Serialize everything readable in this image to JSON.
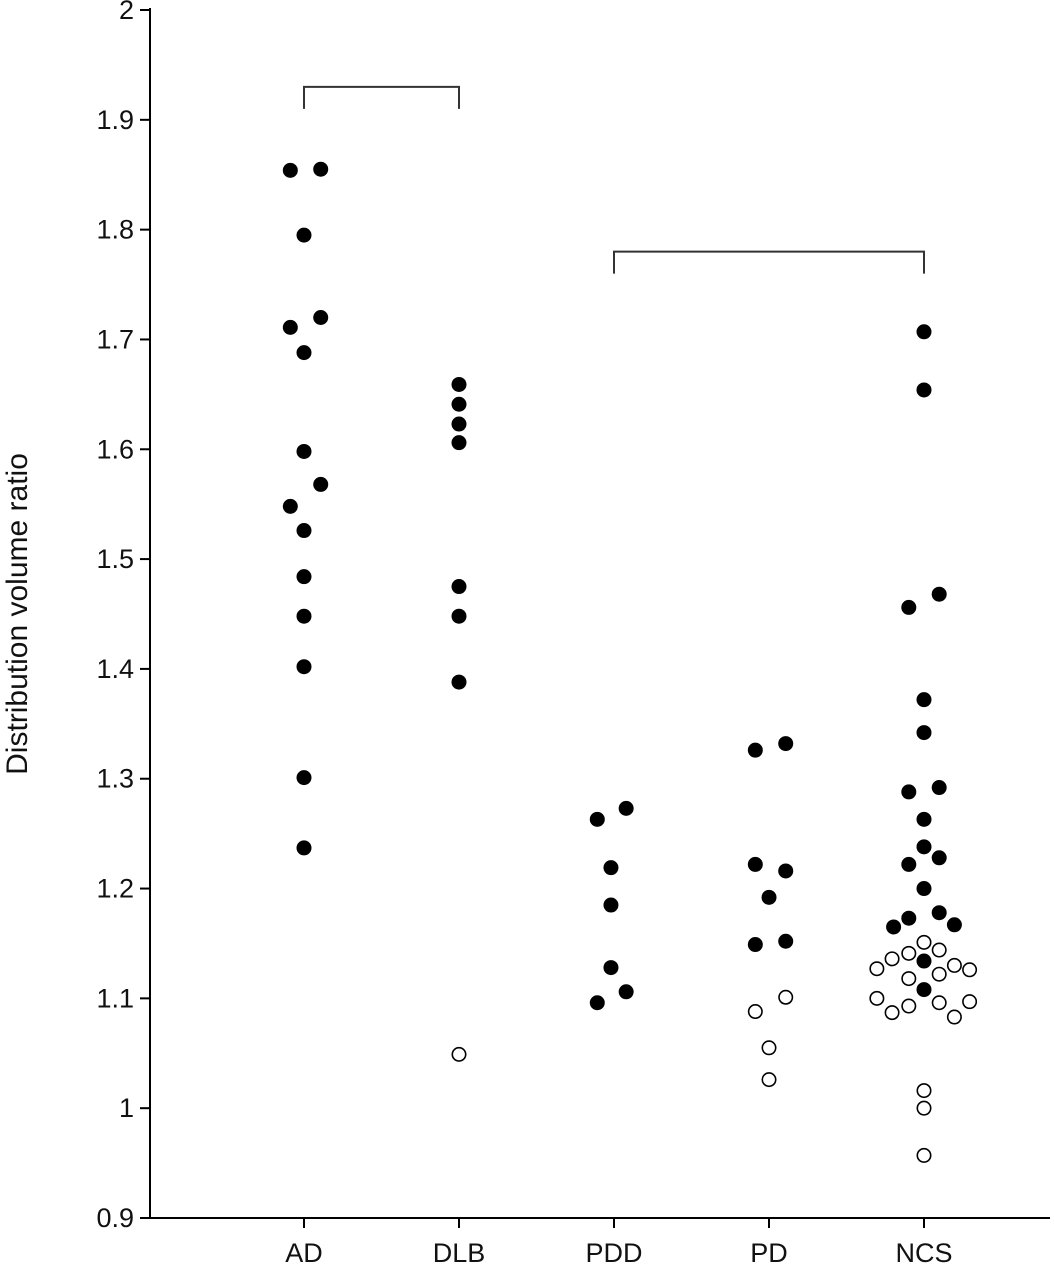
{
  "chart_data": {
    "type": "scatter",
    "title": "",
    "xlabel": "",
    "ylabel": "Distribution volume ratio",
    "ylim": [
      0.9,
      2.0
    ],
    "yticks": [
      "0.9",
      "1",
      "1.1",
      "1.2",
      "1.3",
      "1.4",
      "1.5",
      "1.6",
      "1.7",
      "1.8",
      "1.9",
      "2"
    ],
    "categories": [
      "AD",
      "DLB",
      "PDD",
      "PD",
      "NCS"
    ],
    "grid": false,
    "legend": "none",
    "colors": {
      "filled": "#000000",
      "open_fill": "#ffffff",
      "open_stroke": "#000000",
      "axis": "#000000"
    },
    "comparison_brackets": [
      {
        "from": "AD",
        "to": "DLB",
        "y": 1.93
      },
      {
        "from": "PDD",
        "to": "NCS",
        "y": 1.78
      }
    ],
    "series": [
      {
        "category": "AD",
        "filled": true,
        "points": [
          {
            "y": 1.854,
            "offset": -0.09
          },
          {
            "y": 1.855,
            "offset": 0.11
          },
          {
            "y": 1.795,
            "offset": 0.0
          },
          {
            "y": 1.72,
            "offset": 0.11
          },
          {
            "y": 1.711,
            "offset": -0.09
          },
          {
            "y": 1.688,
            "offset": 0.0
          },
          {
            "y": 1.598,
            "offset": 0.0
          },
          {
            "y": 1.568,
            "offset": 0.11
          },
          {
            "y": 1.548,
            "offset": -0.09
          },
          {
            "y": 1.526,
            "offset": 0.0
          },
          {
            "y": 1.484,
            "offset": 0.0
          },
          {
            "y": 1.448,
            "offset": 0.0
          },
          {
            "y": 1.402,
            "offset": 0.0
          },
          {
            "y": 1.301,
            "offset": 0.0
          },
          {
            "y": 1.237,
            "offset": 0.0
          }
        ]
      },
      {
        "category": "DLB",
        "filled": true,
        "points": [
          {
            "y": 1.659,
            "offset": 0.0
          },
          {
            "y": 1.641,
            "offset": 0.0
          },
          {
            "y": 1.623,
            "offset": 0.0
          },
          {
            "y": 1.606,
            "offset": 0.0
          },
          {
            "y": 1.475,
            "offset": 0.0
          },
          {
            "y": 1.448,
            "offset": 0.0
          },
          {
            "y": 1.388,
            "offset": 0.0
          }
        ]
      },
      {
        "category": "DLB",
        "filled": false,
        "points": [
          {
            "y": 1.049,
            "offset": 0.0
          }
        ]
      },
      {
        "category": "PDD",
        "filled": true,
        "points": [
          {
            "y": 1.273,
            "offset": 0.08
          },
          {
            "y": 1.263,
            "offset": -0.11
          },
          {
            "y": 1.219,
            "offset": -0.02
          },
          {
            "y": 1.185,
            "offset": -0.02
          },
          {
            "y": 1.128,
            "offset": -0.02
          },
          {
            "y": 1.106,
            "offset": 0.08
          },
          {
            "y": 1.096,
            "offset": -0.11
          }
        ]
      },
      {
        "category": "PD",
        "filled": true,
        "points": [
          {
            "y": 1.332,
            "offset": 0.11
          },
          {
            "y": 1.326,
            "offset": -0.09
          },
          {
            "y": 1.222,
            "offset": -0.09
          },
          {
            "y": 1.216,
            "offset": 0.11
          },
          {
            "y": 1.192,
            "offset": 0.0
          },
          {
            "y": 1.152,
            "offset": 0.11
          },
          {
            "y": 1.149,
            "offset": -0.09
          }
        ]
      },
      {
        "category": "PD",
        "filled": false,
        "points": [
          {
            "y": 1.101,
            "offset": 0.11
          },
          {
            "y": 1.088,
            "offset": -0.09
          },
          {
            "y": 1.055,
            "offset": 0.0
          },
          {
            "y": 1.026,
            "offset": 0.0
          }
        ]
      },
      {
        "category": "NCS",
        "filled": true,
        "points": [
          {
            "y": 1.707,
            "offset": 0.0
          },
          {
            "y": 1.654,
            "offset": 0.0
          },
          {
            "y": 1.468,
            "offset": 0.1
          },
          {
            "y": 1.456,
            "offset": -0.1
          },
          {
            "y": 1.372,
            "offset": 0.0
          },
          {
            "y": 1.342,
            "offset": 0.0
          },
          {
            "y": 1.292,
            "offset": 0.1
          },
          {
            "y": 1.288,
            "offset": -0.1
          },
          {
            "y": 1.263,
            "offset": 0.0
          },
          {
            "y": 1.238,
            "offset": 0.0
          },
          {
            "y": 1.228,
            "offset": 0.1
          },
          {
            "y": 1.222,
            "offset": -0.1
          },
          {
            "y": 1.2,
            "offset": 0.0
          },
          {
            "y": 1.178,
            "offset": 0.1
          },
          {
            "y": 1.173,
            "offset": -0.1
          },
          {
            "y": 1.167,
            "offset": 0.2
          },
          {
            "y": 1.165,
            "offset": -0.2
          },
          {
            "y": 1.134,
            "offset": 0.0
          },
          {
            "y": 1.108,
            "offset": 0.0
          }
        ]
      },
      {
        "category": "NCS",
        "filled": false,
        "points": [
          {
            "y": 1.151,
            "offset": 0.0
          },
          {
            "y": 1.144,
            "offset": 0.1
          },
          {
            "y": 1.141,
            "offset": -0.1
          },
          {
            "y": 1.136,
            "offset": -0.21
          },
          {
            "y": 1.13,
            "offset": 0.2
          },
          {
            "y": 1.127,
            "offset": -0.31
          },
          {
            "y": 1.126,
            "offset": 0.3
          },
          {
            "y": 1.122,
            "offset": 0.1
          },
          {
            "y": 1.118,
            "offset": -0.1
          },
          {
            "y": 1.1,
            "offset": -0.31
          },
          {
            "y": 1.097,
            "offset": 0.3
          },
          {
            "y": 1.096,
            "offset": 0.1
          },
          {
            "y": 1.093,
            "offset": -0.1
          },
          {
            "y": 1.087,
            "offset": -0.21
          },
          {
            "y": 1.083,
            "offset": 0.2
          },
          {
            "y": 1.016,
            "offset": 0.0
          },
          {
            "y": 1.0,
            "offset": 0.0
          },
          {
            "y": 0.957,
            "offset": 0.0
          }
        ]
      }
    ]
  }
}
